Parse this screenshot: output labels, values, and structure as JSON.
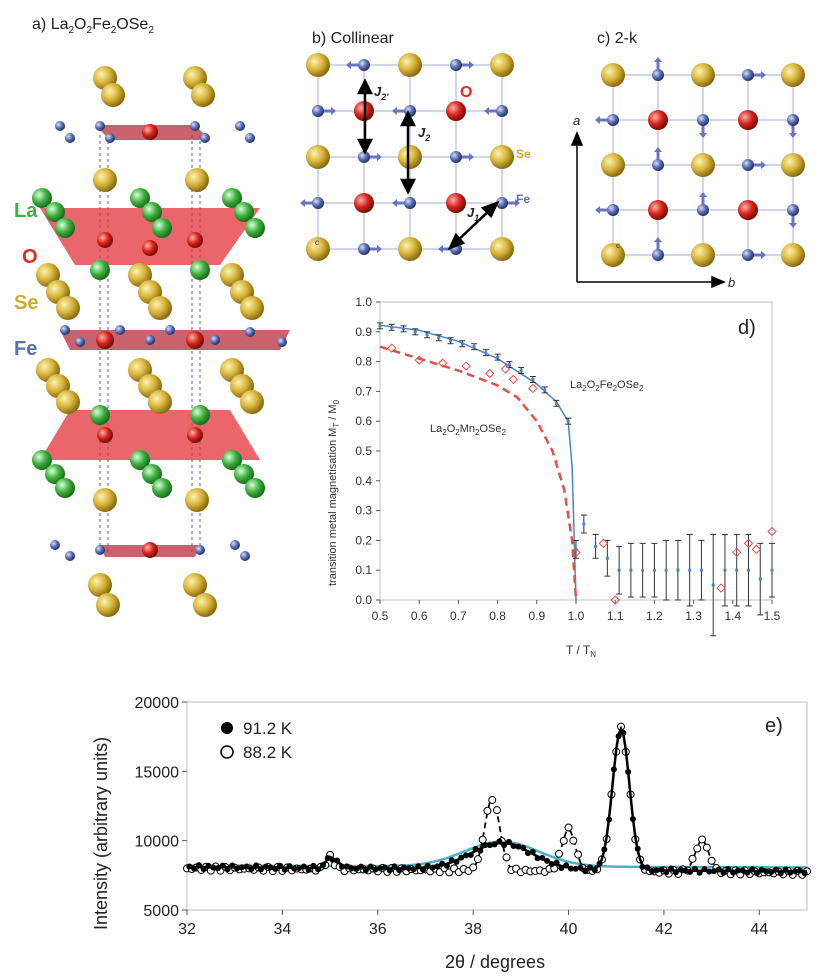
{
  "panel_a": {
    "label": "a)",
    "formula": {
      "p1": "La",
      "s1": "2",
      "p2": "O",
      "s2": "2",
      "p3": "Fe",
      "s3": "2",
      "p4": "OSe",
      "s4": "2"
    },
    "legend": [
      {
        "name": "La",
        "color": "#3fb13f"
      },
      {
        "name": "O",
        "color": "#e32a22"
      },
      {
        "name": "Se",
        "color": "#c8ad2d"
      },
      {
        "name": "Fe",
        "color": "#5a6fb3"
      }
    ]
  },
  "panel_b": {
    "title": "b) Collinear",
    "j_labels": {
      "j2p_main": "J",
      "j2p_sub": "2'",
      "j2_main": "J",
      "j2_sub": "2",
      "j1_main": "J",
      "j1_sub": "1"
    },
    "species": {
      "O": "O",
      "Se": "Se",
      "Fe": "Fe"
    },
    "origin_mark": "c"
  },
  "panel_c": {
    "title": "c) 2-k",
    "axis_a": "a",
    "axis_b": "b",
    "origin_mark": "c"
  },
  "chart_data": [
    {
      "type": "scatter",
      "panel_label": "d)",
      "xlabel_main": "T / T",
      "xlabel_sub": "N",
      "ylabel_main": "transition metal magnetisation M",
      "ylabel_sub1": "T",
      "ylabel_mid": " / M",
      "ylabel_sub2": "0",
      "xlim": [
        0.5,
        1.5
      ],
      "ylim": [
        0.0,
        1.0
      ],
      "xticks": [
        "0.5",
        "0.6",
        "0.7",
        "0.8",
        "0.9",
        "1.0",
        "1.1",
        "1.2",
        "1.3",
        "1.4",
        "1.5"
      ],
      "yticks": [
        "0.0",
        "0.1",
        "0.2",
        "0.3",
        "0.4",
        "0.5",
        "0.6",
        "0.7",
        "0.8",
        "0.9",
        "1.0"
      ],
      "series": [
        {
          "name_parts": {
            "p1": "La",
            "s1": "2",
            "p2": "O",
            "s2": "2",
            "p3": "Fe",
            "s3": "2",
            "p4": "OSe",
            "s4": "2"
          },
          "color": "#4a86c5",
          "points": [
            [
              0.5,
              0.92,
              0.01
            ],
            [
              0.53,
              0.915,
              0.01
            ],
            [
              0.56,
              0.91,
              0.01
            ],
            [
              0.59,
              0.9,
              0.01
            ],
            [
              0.62,
              0.89,
              0.01
            ],
            [
              0.65,
              0.88,
              0.01
            ],
            [
              0.68,
              0.87,
              0.01
            ],
            [
              0.71,
              0.86,
              0.01
            ],
            [
              0.74,
              0.85,
              0.01
            ],
            [
              0.77,
              0.83,
              0.01
            ],
            [
              0.8,
              0.815,
              0.01
            ],
            [
              0.83,
              0.79,
              0.01
            ],
            [
              0.86,
              0.77,
              0.01
            ],
            [
              0.89,
              0.74,
              0.01
            ],
            [
              0.92,
              0.705,
              0.01
            ],
            [
              0.95,
              0.66,
              0.01
            ],
            [
              0.98,
              0.6,
              0.01
            ],
            [
              1.0,
              0.17,
              0.03
            ],
            [
              1.02,
              0.255,
              0.03
            ],
            [
              1.05,
              0.18,
              0.04
            ],
            [
              1.08,
              0.14,
              0.06
            ],
            [
              1.11,
              0.1,
              0.08
            ],
            [
              1.14,
              0.1,
              0.09
            ],
            [
              1.17,
              0.1,
              0.09
            ],
            [
              1.2,
              0.1,
              0.09
            ],
            [
              1.23,
              0.1,
              0.1
            ],
            [
              1.26,
              0.1,
              0.1
            ],
            [
              1.29,
              0.1,
              0.12
            ],
            [
              1.32,
              0.1,
              0.1
            ],
            [
              1.35,
              0.05,
              0.17
            ],
            [
              1.38,
              0.1,
              0.12
            ],
            [
              1.41,
              0.1,
              0.12
            ],
            [
              1.44,
              0.1,
              0.12
            ],
            [
              1.47,
              0.07,
              0.12
            ],
            [
              1.5,
              0.1,
              0.09
            ]
          ],
          "fit": [
            [
              0.5,
              0.922
            ],
            [
              0.6,
              0.905
            ],
            [
              0.7,
              0.868
            ],
            [
              0.8,
              0.81
            ],
            [
              0.9,
              0.725
            ],
            [
              0.95,
              0.665
            ],
            [
              0.98,
              0.6
            ],
            [
              0.99,
              0.45
            ],
            [
              1.0,
              0.0
            ]
          ]
        },
        {
          "name_parts": {
            "p1": "La",
            "s1": "2",
            "p2": "O",
            "s2": "2",
            "p3": "Mn",
            "s3": "2",
            "p4": "OSe",
            "s4": "2"
          },
          "color": "#e2504a",
          "points": [
            [
              0.53,
              0.845
            ],
            [
              0.6,
              0.805
            ],
            [
              0.66,
              0.795
            ],
            [
              0.72,
              0.785
            ],
            [
              0.78,
              0.76
            ],
            [
              0.82,
              0.775
            ],
            [
              0.84,
              0.74
            ],
            [
              0.89,
              0.71
            ],
            [
              1.0,
              0.16
            ],
            [
              1.07,
              0.19
            ],
            [
              1.1,
              0.0
            ],
            [
              1.37,
              0.04
            ],
            [
              1.41,
              0.16
            ],
            [
              1.44,
              0.19
            ],
            [
              1.46,
              0.17
            ],
            [
              1.5,
              0.23
            ]
          ],
          "fit": [
            [
              0.5,
              0.85
            ],
            [
              0.6,
              0.81
            ],
            [
              0.7,
              0.77
            ],
            [
              0.8,
              0.72
            ],
            [
              0.85,
              0.68
            ],
            [
              0.9,
              0.6
            ],
            [
              0.94,
              0.5
            ],
            [
              0.97,
              0.37
            ],
            [
              0.99,
              0.2
            ],
            [
              1.0,
              0.0
            ]
          ]
        }
      ]
    },
    {
      "type": "line",
      "panel_label": "e)",
      "xlabel": "2θ / degrees",
      "ylabel": "Intensity (arbitrary units)",
      "xlim": [
        32,
        45
      ],
      "ylim": [
        5000,
        20000
      ],
      "xticks": [
        "32",
        "34",
        "36",
        "38",
        "40",
        "42",
        "44"
      ],
      "yticks": [
        "5000",
        "10000",
        "15000",
        "20000"
      ],
      "series": [
        {
          "name": "91.2 K",
          "style": "filled",
          "peaks": [
            [
              38.6,
              10000,
              0.9
            ],
            [
              41.1,
              18300,
              0.25
            ]
          ],
          "background": 8100,
          "bumps": [
            [
              35.0,
              8900,
              0.12
            ],
            [
              35.2,
              8400,
              0.1
            ]
          ]
        },
        {
          "name": "88.2 K",
          "style": "open",
          "peaks": [
            [
              38.4,
              13200,
              0.22
            ],
            [
              40.0,
              11000,
              0.2
            ],
            [
              41.1,
              18300,
              0.25
            ],
            [
              42.8,
              10300,
              0.2
            ]
          ],
          "background": 8000,
          "bumps": [
            [
              35.0,
              8900,
              0.12
            ]
          ]
        },
        {
          "name": "background",
          "style": "cyan",
          "color": "#4fb0c9"
        }
      ]
    }
  ]
}
